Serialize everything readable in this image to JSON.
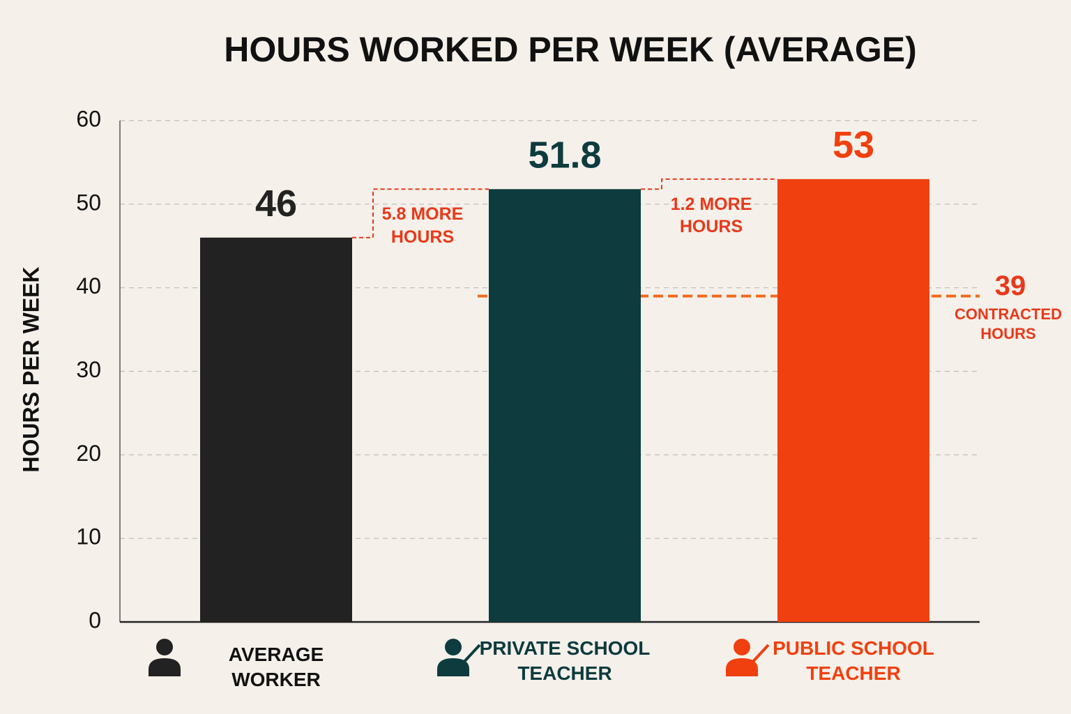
{
  "chart_data": {
    "type": "bar",
    "title": "HOURS WORKED PER WEEK (AVERAGE)",
    "y_label": "HOURS PER WEEK",
    "categories": [
      "AVERAGE WORKER",
      "PRIVATE SCHOOL TEACHER",
      "PUBLIC SCHOOL TEACHER"
    ],
    "values": [
      46,
      51.8,
      53
    ],
    "colors": [
      "#222222",
      "#0d3b3e",
      "#f0400f"
    ],
    "ylim": [
      0,
      60
    ],
    "yticks": [
      0,
      10,
      20,
      30,
      40,
      50,
      60
    ],
    "grid": true,
    "annotations": [
      "5.8 MORE HOURS",
      "1.2 MORE HOURS"
    ],
    "annotation_color": "#e8391a",
    "reference_line": {
      "value": 39,
      "label": "CONTRACTED HOURS",
      "color": "#f26a1b"
    }
  }
}
